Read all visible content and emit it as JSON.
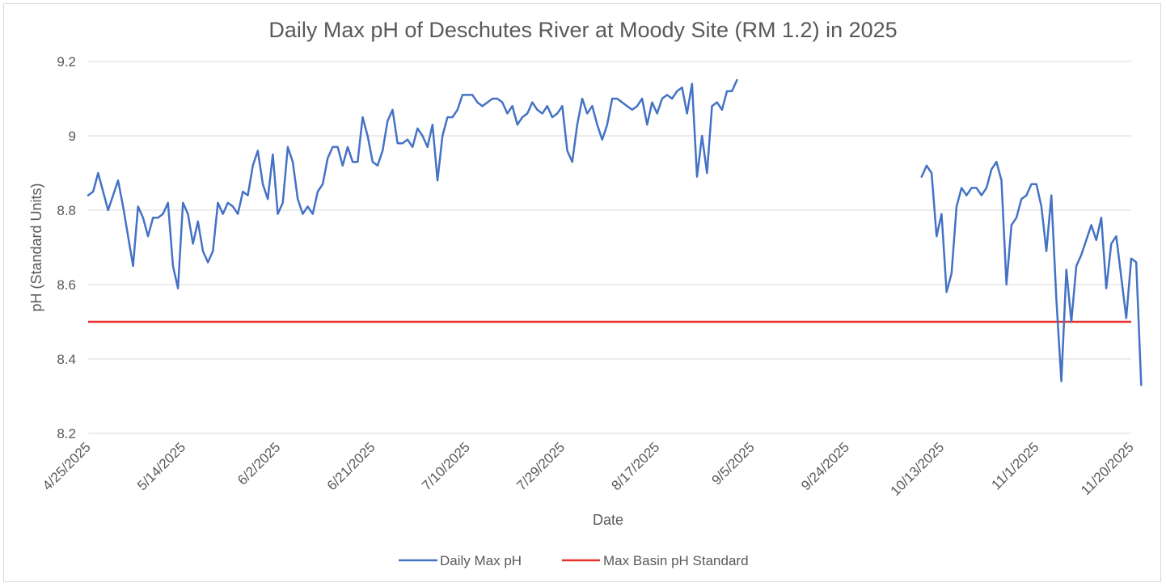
{
  "chart_data": {
    "type": "line",
    "title": "Daily Max pH of Deschutes River at Moody Site (RM 1.2) in 2025",
    "xlabel": "Date",
    "ylabel": "pH (Standard Units)",
    "ylim": [
      8.2,
      9.2
    ],
    "y_ticks": [
      "8.2",
      "8.4",
      "8.6",
      "8.8",
      "9",
      "9.2"
    ],
    "y_tick_values": [
      8.2,
      8.4,
      8.6,
      8.8,
      9.0,
      9.2
    ],
    "x_start": "4/25/2025",
    "x_days": 209,
    "x_ticks": [
      {
        "day": 0,
        "label": "4/25/2025"
      },
      {
        "day": 19,
        "label": "5/14/2025"
      },
      {
        "day": 38,
        "label": "6/2/2025"
      },
      {
        "day": 57,
        "label": "6/21/2025"
      },
      {
        "day": 76,
        "label": "7/10/2025"
      },
      {
        "day": 95,
        "label": "7/29/2025"
      },
      {
        "day": 114,
        "label": "8/17/2025"
      },
      {
        "day": 133,
        "label": "9/5/2025"
      },
      {
        "day": 152,
        "label": "9/24/2025"
      },
      {
        "day": 171,
        "label": "10/13/2025"
      },
      {
        "day": 190,
        "label": "11/1/2025"
      },
      {
        "day": 209,
        "label": "11/20/2025"
      }
    ],
    "grid": true,
    "legend_position": "bottom",
    "series": [
      {
        "name": "Daily Max pH",
        "color": "#4472c4",
        "segments": [
          {
            "start_day": 0,
            "values": [
              8.84,
              8.85,
              8.9,
              8.85,
              8.8,
              8.84,
              8.88,
              8.81,
              8.73,
              8.65,
              8.81,
              8.78,
              8.73,
              8.78,
              8.78,
              8.79,
              8.82,
              8.65,
              8.59,
              8.82,
              8.79,
              8.71,
              8.77,
              8.69,
              8.66,
              8.69,
              8.82,
              8.79,
              8.82,
              8.81,
              8.79,
              8.85,
              8.84,
              8.92,
              8.96,
              8.87,
              8.83,
              8.95,
              8.79,
              8.82,
              8.97,
              8.93,
              8.83,
              8.79,
              8.81,
              8.79,
              8.85,
              8.87,
              8.94,
              8.97,
              8.97,
              8.92,
              8.97,
              8.93,
              8.93,
              9.05,
              9.0,
              8.93,
              8.92,
              8.96,
              9.04,
              9.07,
              8.98,
              8.98,
              8.99,
              8.97,
              9.02,
              9.0,
              8.97,
              9.03,
              8.88,
              9.0,
              9.05,
              9.05,
              9.07,
              9.11,
              9.11,
              9.11,
              9.09,
              9.08,
              9.09,
              9.1,
              9.1,
              9.09,
              9.06,
              9.08,
              9.03,
              9.05,
              9.06,
              9.09,
              9.07,
              9.06,
              9.08,
              9.05,
              9.06,
              9.08,
              8.96,
              8.93,
              9.03,
              9.1,
              9.06,
              9.08,
              9.03,
              8.99,
              9.03,
              9.1,
              9.1,
              9.09,
              9.08,
              9.07,
              9.08,
              9.1,
              9.03,
              9.09,
              9.06,
              9.1,
              9.11,
              9.1,
              9.12,
              9.13,
              9.06,
              9.14,
              8.89,
              9.0,
              8.9,
              9.08,
              9.09,
              9.07,
              9.12,
              9.12,
              9.15
            ]
          },
          {
            "start_day": 167,
            "values": [
              8.89,
              8.92,
              8.9,
              8.73,
              8.79,
              8.58,
              8.63,
              8.81,
              8.86,
              8.84,
              8.86,
              8.86,
              8.84,
              8.86,
              8.91,
              8.93,
              8.88,
              8.6,
              8.76,
              8.78,
              8.83,
              8.84,
              8.87,
              8.87,
              8.81,
              8.69,
              8.84,
              8.56,
              8.34,
              8.64,
              8.5,
              8.65,
              8.68,
              8.72,
              8.76,
              8.72,
              8.78,
              8.59,
              8.71,
              8.73,
              8.62,
              8.51,
              8.67,
              8.66,
              8.33
            ]
          }
        ]
      },
      {
        "name": "Max Basin pH Standard",
        "color": "#e8302a",
        "constant": 8.5
      }
    ]
  }
}
